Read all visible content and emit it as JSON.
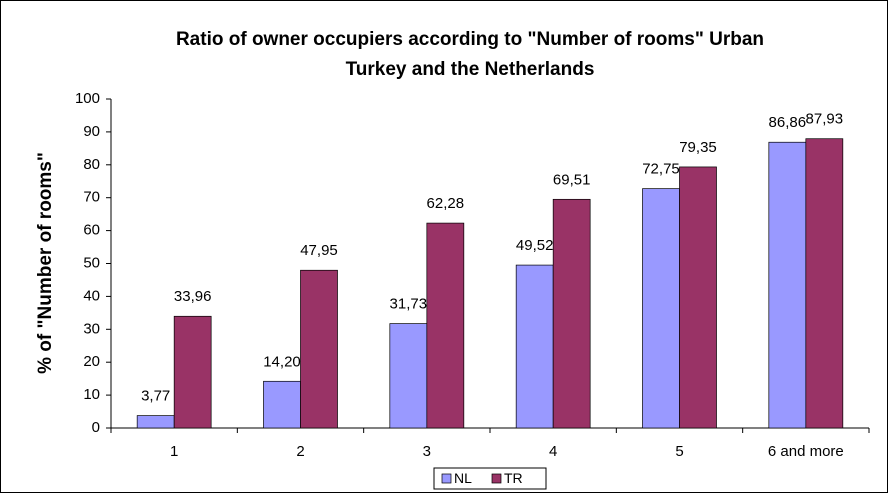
{
  "chart_data": {
    "type": "bar",
    "title": [
      "Ratio of owner occupiers according to \"Number of rooms\" Urban",
      "Turkey and the Netherlands"
    ],
    "y_label": "% of \"Number of rooms\"",
    "categories": [
      "1",
      "2",
      "3",
      "4",
      "5",
      "6 and more"
    ],
    "series": [
      {
        "name": "NL",
        "color": "#9999ff",
        "values": [
          3.77,
          14.2,
          31.73,
          49.52,
          72.75,
          86.86
        ],
        "value_labels": [
          "3,77",
          "14,20",
          "31,73",
          "49,52",
          "72,75",
          "86,86"
        ]
      },
      {
        "name": "TR",
        "color": "#993366",
        "values": [
          33.96,
          47.95,
          62.28,
          69.51,
          79.35,
          87.93
        ],
        "value_labels": [
          "33,96",
          "47,95",
          "62,28",
          "69,51",
          "79,35",
          "87,93"
        ]
      }
    ],
    "ylim": [
      0,
      100
    ],
    "yticks": [
      0,
      10,
      20,
      30,
      40,
      50,
      60,
      70,
      80,
      90,
      100
    ],
    "legend": "bottom"
  }
}
